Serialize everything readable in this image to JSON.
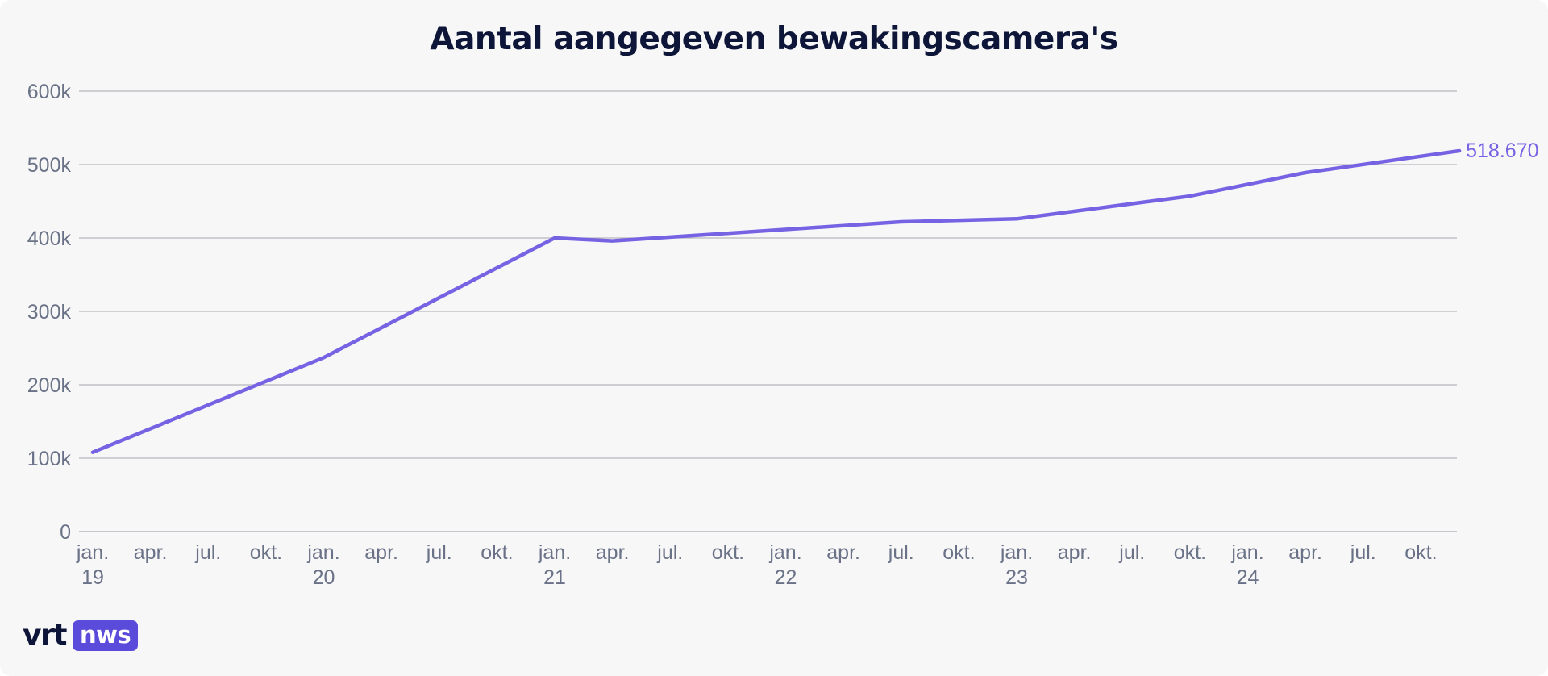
{
  "chart_data": {
    "type": "line",
    "title": "Aantal aangegeven bewakingscamera's",
    "xlabel": "",
    "ylabel": "",
    "ylim": [
      0,
      600000
    ],
    "yticks": [
      {
        "value": 0,
        "label": "0"
      },
      {
        "value": 100000,
        "label": "100k"
      },
      {
        "value": 200000,
        "label": "200k"
      },
      {
        "value": 300000,
        "label": "300k"
      },
      {
        "value": 400000,
        "label": "400k"
      },
      {
        "value": 500000,
        "label": "500k"
      },
      {
        "value": 600000,
        "label": "600k"
      }
    ],
    "xticks": [
      {
        "date": "2019-01",
        "label": "jan.",
        "year": "19"
      },
      {
        "date": "2019-04",
        "label": "apr.",
        "year": ""
      },
      {
        "date": "2019-07",
        "label": "jul.",
        "year": ""
      },
      {
        "date": "2019-10",
        "label": "okt.",
        "year": ""
      },
      {
        "date": "2020-01",
        "label": "jan.",
        "year": "20"
      },
      {
        "date": "2020-04",
        "label": "apr.",
        "year": ""
      },
      {
        "date": "2020-07",
        "label": "jul.",
        "year": ""
      },
      {
        "date": "2020-10",
        "label": "okt.",
        "year": ""
      },
      {
        "date": "2021-01",
        "label": "jan.",
        "year": "21"
      },
      {
        "date": "2021-04",
        "label": "apr.",
        "year": ""
      },
      {
        "date": "2021-07",
        "label": "jul.",
        "year": ""
      },
      {
        "date": "2021-10",
        "label": "okt.",
        "year": ""
      },
      {
        "date": "2022-01",
        "label": "jan.",
        "year": "22"
      },
      {
        "date": "2022-04",
        "label": "apr.",
        "year": ""
      },
      {
        "date": "2022-07",
        "label": "jul.",
        "year": ""
      },
      {
        "date": "2022-10",
        "label": "okt.",
        "year": ""
      },
      {
        "date": "2023-01",
        "label": "jan.",
        "year": "23"
      },
      {
        "date": "2023-04",
        "label": "apr.",
        "year": ""
      },
      {
        "date": "2023-07",
        "label": "jul.",
        "year": ""
      },
      {
        "date": "2023-10",
        "label": "okt.",
        "year": ""
      },
      {
        "date": "2024-01",
        "label": "jan.",
        "year": "24"
      },
      {
        "date": "2024-04",
        "label": "apr.",
        "year": ""
      },
      {
        "date": "2024-07",
        "label": "jul.",
        "year": ""
      },
      {
        "date": "2024-10",
        "label": "okt.",
        "year": ""
      }
    ],
    "series": [
      {
        "color": "#7563e3",
        "points": [
          {
            "date": "2019-01",
            "value": 108000
          },
          {
            "date": "2020-01",
            "value": 237000
          },
          {
            "date": "2021-01",
            "value": 400000
          },
          {
            "date": "2021-04",
            "value": 396000
          },
          {
            "date": "2022-07",
            "value": 422000
          },
          {
            "date": "2023-01",
            "value": 426000
          },
          {
            "date": "2023-10",
            "value": 457000
          },
          {
            "date": "2024-04",
            "value": 489000
          },
          {
            "date": "2024-12",
            "value": 518670
          }
        ],
        "end_label": "518.670"
      }
    ],
    "grid": true,
    "legend": "none"
  },
  "footer": {
    "logo_vrt": "vrt",
    "logo_nws": "nws"
  },
  "colors": {
    "background": "#f8f7f8",
    "title": "#0d1638",
    "axis_text": "#6a7287",
    "gridline": "#b4b6bd",
    "line": "#7563e3",
    "logo_badge": "#5b4bdb"
  }
}
